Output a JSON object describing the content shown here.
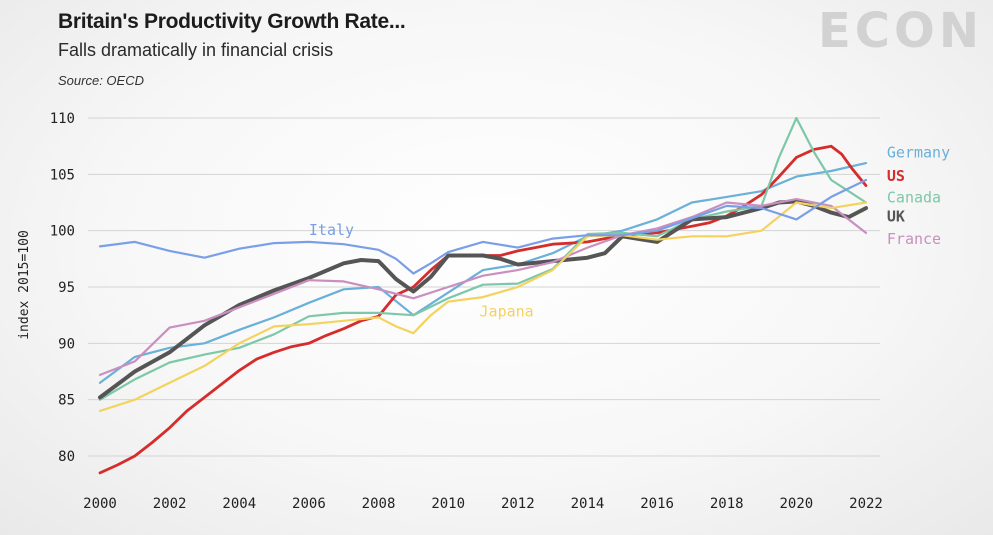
{
  "header": {
    "title": "Britain's Productivity Growth Rate...",
    "subtitle": "Falls dramatically in financial crisis",
    "source": "Source: OECD",
    "logo": "ECON"
  },
  "chart_data": {
    "type": "line",
    "ylabel": "index 2015=100",
    "xlim": [
      2000,
      2022
    ],
    "ylim": [
      77,
      112
    ],
    "xticks": [
      "2000",
      "2002",
      "2004",
      "2006",
      "2008",
      "2010",
      "2012",
      "2014",
      "2016",
      "2018",
      "2020",
      "2022"
    ],
    "yticks": [
      "80",
      "85",
      "90",
      "95",
      "100",
      "105",
      "110"
    ],
    "grid": "horizontal",
    "series": [
      {
        "name": "Germany",
        "color": "#6ab0d8",
        "width": 2.2,
        "x": [
          2000,
          2001,
          2002,
          2003,
          2004,
          2005,
          2006,
          2007,
          2008,
          2009,
          2010,
          2011,
          2012,
          2013,
          2014,
          2015,
          2016,
          2017,
          2018,
          2019,
          2020,
          2021,
          2022
        ],
        "y": [
          86.5,
          88.8,
          89.6,
          90.0,
          91.2,
          92.3,
          93.6,
          94.8,
          95.0,
          92.5,
          94.5,
          96.5,
          97.0,
          98.0,
          99.5,
          100.0,
          101.0,
          102.5,
          103.0,
          103.5,
          104.8,
          105.3,
          106.0
        ]
      },
      {
        "name": "US",
        "color": "#d62c2c",
        "width": 2.8,
        "x": [
          2000,
          2000.5,
          2001,
          2001.5,
          2002,
          2002.5,
          2003,
          2003.5,
          2004,
          2004.5,
          2005,
          2005.5,
          2006,
          2006.5,
          2007,
          2007.5,
          2008,
          2008.5,
          2009,
          2009.5,
          2010,
          2010.5,
          2011,
          2011.5,
          2012,
          2012.5,
          2013,
          2013.5,
          2014,
          2014.5,
          2015,
          2015.5,
          2016,
          2016.5,
          2017,
          2017.5,
          2018,
          2018.5,
          2019,
          2019.5,
          2020,
          2020.5,
          2021,
          2021.3,
          2021.6,
          2022
        ],
        "y": [
          78.5,
          79.2,
          80.0,
          81.2,
          82.5,
          84.0,
          85.2,
          86.4,
          87.6,
          88.6,
          89.2,
          89.7,
          90.0,
          90.7,
          91.3,
          92.0,
          92.4,
          94.3,
          95.0,
          96.5,
          97.8,
          97.8,
          97.8,
          97.8,
          98.2,
          98.5,
          98.8,
          98.9,
          99.0,
          99.3,
          99.6,
          99.7,
          99.8,
          100.1,
          100.4,
          100.7,
          101.3,
          102.2,
          103.2,
          104.8,
          106.5,
          107.2,
          107.5,
          106.8,
          105.5,
          104.0
        ]
      },
      {
        "name": "Canada",
        "color": "#7cc8a8",
        "width": 2.2,
        "x": [
          2000,
          2001,
          2002,
          2003,
          2004,
          2005,
          2006,
          2007,
          2008,
          2009,
          2010,
          2011,
          2012,
          2013,
          2014,
          2015,
          2016,
          2017,
          2018,
          2019,
          2019.5,
          2020,
          2020.5,
          2021,
          2021.5,
          2022
        ],
        "y": [
          85.0,
          86.8,
          88.3,
          89.0,
          89.6,
          90.8,
          92.4,
          92.7,
          92.7,
          92.5,
          94.0,
          95.2,
          95.3,
          96.6,
          99.7,
          99.8,
          99.5,
          101.0,
          101.7,
          102.2,
          106.5,
          110.0,
          107.0,
          104.5,
          103.5,
          102.5
        ]
      },
      {
        "name": "UK",
        "color": "#555555",
        "width": 4,
        "x": [
          2000,
          2001,
          2002,
          2003,
          2004,
          2005,
          2006,
          2007,
          2007.5,
          2008,
          2008.5,
          2009,
          2009.5,
          2010,
          2010.5,
          2011,
          2011.5,
          2012,
          2013,
          2014,
          2014.5,
          2015,
          2016,
          2017,
          2018,
          2019,
          2019.5,
          2020,
          2020.5,
          2021,
          2021.5,
          2022
        ],
        "y": [
          85.2,
          87.5,
          89.2,
          91.6,
          93.4,
          94.7,
          95.8,
          97.1,
          97.4,
          97.3,
          95.7,
          94.6,
          95.9,
          97.8,
          97.8,
          97.8,
          97.5,
          97.0,
          97.3,
          97.6,
          98.0,
          99.5,
          99.0,
          101.0,
          101.2,
          102.0,
          102.5,
          102.6,
          102.2,
          101.6,
          101.2,
          102.0
        ]
      },
      {
        "name": "France",
        "color": "#c98fc0",
        "width": 2.2,
        "x": [
          2000,
          2001,
          2002,
          2003,
          2004,
          2005,
          2006,
          2007,
          2008,
          2009,
          2010,
          2011,
          2012,
          2013,
          2014,
          2015,
          2016,
          2017,
          2018,
          2019,
          2020,
          2021,
          2022
        ],
        "y": [
          87.2,
          88.4,
          91.4,
          92.0,
          93.2,
          94.4,
          95.6,
          95.5,
          94.8,
          94.0,
          95.0,
          96.0,
          96.5,
          97.2,
          98.5,
          99.6,
          100.2,
          101.2,
          102.5,
          102.2,
          102.8,
          102.2,
          99.8
        ]
      },
      {
        "name": "Japana",
        "color": "#f3d35e",
        "width": 2.2,
        "x": [
          2000,
          2001,
          2002,
          2003,
          2004,
          2005,
          2006,
          2007,
          2008,
          2008.5,
          2009,
          2009.5,
          2010,
          2011,
          2012,
          2013,
          2014,
          2015,
          2016,
          2017,
          2018,
          2019,
          2020,
          2021,
          2022
        ],
        "y": [
          84.0,
          85.0,
          86.5,
          88.0,
          90.0,
          91.5,
          91.7,
          92.0,
          92.3,
          91.5,
          90.9,
          92.5,
          93.7,
          94.1,
          95.0,
          96.5,
          99.5,
          99.6,
          99.2,
          99.5,
          99.5,
          100.0,
          102.5,
          102.0,
          102.5
        ]
      },
      {
        "name": "Italy",
        "color": "#7a9fe6",
        "width": 2.2,
        "x": [
          2000,
          2001,
          2002,
          2003,
          2004,
          2005,
          2006,
          2007,
          2008,
          2008.5,
          2009,
          2009.5,
          2010,
          2011,
          2012,
          2013,
          2014,
          2015,
          2016,
          2017,
          2018,
          2019,
          2020,
          2021,
          2022
        ],
        "y": [
          98.6,
          99.0,
          98.2,
          97.6,
          98.4,
          98.9,
          99.0,
          98.8,
          98.3,
          97.5,
          96.2,
          97.1,
          98.1,
          99.0,
          98.5,
          99.3,
          99.6,
          99.6,
          100.0,
          101.1,
          102.2,
          102.0,
          101.0,
          103.0,
          104.5
        ]
      }
    ],
    "labels": [
      {
        "text": "Italy",
        "series": "Italy",
        "x": 2006,
        "y": 99.6
      },
      {
        "text": "Japana",
        "series": "Japana",
        "x": 2010.9,
        "y": 92.4
      },
      {
        "text": "Germany",
        "series": "Germany",
        "x": 2022.6,
        "y": 106.5
      },
      {
        "text": "US",
        "series": "US",
        "x": 2022.6,
        "y": 104.4
      },
      {
        "text": "Canada",
        "series": "Canada",
        "x": 2022.6,
        "y": 102.5
      },
      {
        "text": "UK",
        "series": "UK",
        "x": 2022.6,
        "y": 100.8
      },
      {
        "text": "France",
        "series": "France",
        "x": 2022.6,
        "y": 98.8
      }
    ]
  }
}
